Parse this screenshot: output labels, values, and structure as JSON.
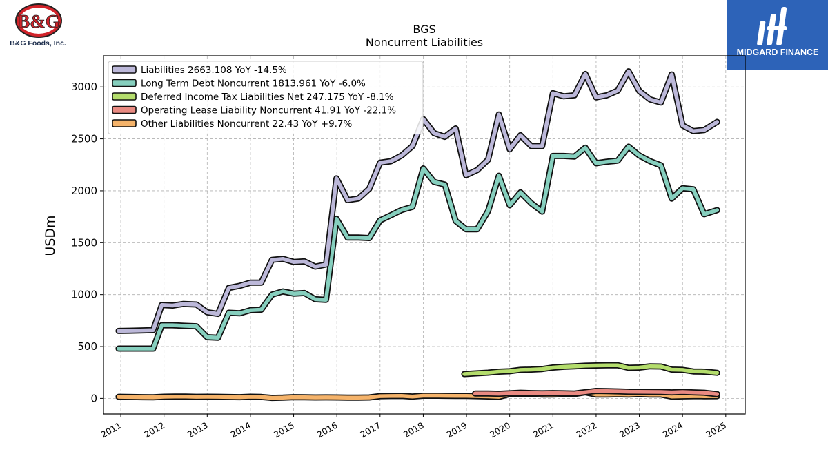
{
  "branding": {
    "company_logo_text": "B&G",
    "company_name": "B&G Foods, Inc.",
    "publisher_logo_text": "MIDGARD FINANCE",
    "publisher_bg_color": "#2d63b8"
  },
  "chart_data": {
    "type": "line",
    "title": "BGS",
    "subtitle": "Noncurrent  Liabilities",
    "ylabel": "USDm",
    "xlabel": "",
    "ylim": [
      -150,
      3300
    ],
    "xlim": [
      2010.6,
      2025.45
    ],
    "yticks": [
      0,
      500,
      1000,
      1500,
      2000,
      2500,
      3000
    ],
    "xticks": [
      "2011",
      "2012",
      "2013",
      "2014",
      "2015",
      "2016",
      "2017",
      "2018",
      "2019",
      "2020",
      "2021",
      "2022",
      "2023",
      "2024",
      "2025"
    ],
    "grid": true,
    "legend_position": "top-left",
    "series": [
      {
        "name": "Liabilities",
        "legend_label": "Liabilities  2663.108 YoY -14.5%",
        "color": "#bcb8d9",
        "points": [
          [
            2010.95,
            650
          ],
          [
            2011.2,
            652
          ],
          [
            2011.45,
            655
          ],
          [
            2011.75,
            658
          ],
          [
            2011.95,
            900
          ],
          [
            2012.2,
            895
          ],
          [
            2012.45,
            910
          ],
          [
            2012.75,
            905
          ],
          [
            2013.0,
            830
          ],
          [
            2013.25,
            815
          ],
          [
            2013.5,
            1065
          ],
          [
            2013.75,
            1085
          ],
          [
            2014.0,
            1115
          ],
          [
            2014.25,
            1115
          ],
          [
            2014.5,
            1335
          ],
          [
            2014.75,
            1345
          ],
          [
            2015.0,
            1315
          ],
          [
            2015.25,
            1320
          ],
          [
            2015.5,
            1270
          ],
          [
            2015.75,
            1290
          ],
          [
            2015.99,
            2120
          ],
          [
            2016.25,
            1910
          ],
          [
            2016.5,
            1925
          ],
          [
            2016.75,
            2020
          ],
          [
            2017.0,
            2270
          ],
          [
            2017.25,
            2285
          ],
          [
            2017.5,
            2340
          ],
          [
            2017.75,
            2430
          ],
          [
            2018.0,
            2690
          ],
          [
            2018.25,
            2555
          ],
          [
            2018.5,
            2520
          ],
          [
            2018.75,
            2600
          ],
          [
            2018.99,
            2150
          ],
          [
            2019.25,
            2200
          ],
          [
            2019.5,
            2300
          ],
          [
            2019.75,
            2735
          ],
          [
            2020.0,
            2400
          ],
          [
            2020.25,
            2535
          ],
          [
            2020.5,
            2430
          ],
          [
            2020.75,
            2430
          ],
          [
            2021.0,
            2940
          ],
          [
            2021.25,
            2910
          ],
          [
            2021.5,
            2920
          ],
          [
            2021.75,
            3125
          ],
          [
            2022.0,
            2900
          ],
          [
            2022.25,
            2920
          ],
          [
            2022.5,
            2965
          ],
          [
            2022.75,
            3150
          ],
          [
            2023.0,
            2960
          ],
          [
            2023.25,
            2880
          ],
          [
            2023.5,
            2850
          ],
          [
            2023.75,
            3120
          ],
          [
            2024.0,
            2630
          ],
          [
            2024.25,
            2575
          ],
          [
            2024.5,
            2585
          ],
          [
            2024.8,
            2663
          ]
        ]
      },
      {
        "name": "Long Term Debt Noncurrent",
        "legend_label": "Long Term Debt Noncurrent  1813.961 YoY -6.0%",
        "color": "#86cfbe",
        "points": [
          [
            2010.95,
            480
          ],
          [
            2011.2,
            480
          ],
          [
            2011.45,
            480
          ],
          [
            2011.75,
            480
          ],
          [
            2011.95,
            705
          ],
          [
            2012.2,
            705
          ],
          [
            2012.45,
            700
          ],
          [
            2012.75,
            695
          ],
          [
            2013.0,
            590
          ],
          [
            2013.25,
            585
          ],
          [
            2013.5,
            825
          ],
          [
            2013.75,
            820
          ],
          [
            2014.0,
            850
          ],
          [
            2014.25,
            855
          ],
          [
            2014.5,
            1000
          ],
          [
            2014.75,
            1030
          ],
          [
            2015.0,
            1010
          ],
          [
            2015.25,
            1015
          ],
          [
            2015.5,
            955
          ],
          [
            2015.75,
            950
          ],
          [
            2015.99,
            1730
          ],
          [
            2016.25,
            1550
          ],
          [
            2016.5,
            1550
          ],
          [
            2016.75,
            1545
          ],
          [
            2017.0,
            1715
          ],
          [
            2017.25,
            1765
          ],
          [
            2017.5,
            1815
          ],
          [
            2017.75,
            1845
          ],
          [
            2018.0,
            2215
          ],
          [
            2018.25,
            2085
          ],
          [
            2018.5,
            2060
          ],
          [
            2018.75,
            1710
          ],
          [
            2018.99,
            1630
          ],
          [
            2019.25,
            1630
          ],
          [
            2019.5,
            1805
          ],
          [
            2019.75,
            2145
          ],
          [
            2020.0,
            1860
          ],
          [
            2020.25,
            1985
          ],
          [
            2020.5,
            1880
          ],
          [
            2020.75,
            1800
          ],
          [
            2021.0,
            2335
          ],
          [
            2021.25,
            2335
          ],
          [
            2021.5,
            2330
          ],
          [
            2021.75,
            2415
          ],
          [
            2022.0,
            2265
          ],
          [
            2022.25,
            2280
          ],
          [
            2022.5,
            2290
          ],
          [
            2022.75,
            2425
          ],
          [
            2023.0,
            2340
          ],
          [
            2023.25,
            2285
          ],
          [
            2023.5,
            2245
          ],
          [
            2023.75,
            1925
          ],
          [
            2024.0,
            2025
          ],
          [
            2024.25,
            2015
          ],
          [
            2024.5,
            1775
          ],
          [
            2024.8,
            1814
          ]
        ]
      },
      {
        "name": "Deferred Income Tax Liabilities Net",
        "legend_label": "Deferred Income Tax Liabilities Net  247.175 YoY -8.1%",
        "color": "#b4dd6c",
        "points": [
          [
            2018.95,
            235
          ],
          [
            2019.25,
            242
          ],
          [
            2019.5,
            248
          ],
          [
            2019.75,
            258
          ],
          [
            2020.0,
            262
          ],
          [
            2020.25,
            275
          ],
          [
            2020.5,
            278
          ],
          [
            2020.75,
            283
          ],
          [
            2021.0,
            298
          ],
          [
            2021.25,
            305
          ],
          [
            2021.5,
            310
          ],
          [
            2021.75,
            315
          ],
          [
            2022.0,
            318
          ],
          [
            2022.25,
            320
          ],
          [
            2022.5,
            320
          ],
          [
            2022.75,
            295
          ],
          [
            2023.0,
            298
          ],
          [
            2023.25,
            310
          ],
          [
            2023.5,
            308
          ],
          [
            2023.75,
            278
          ],
          [
            2024.0,
            275
          ],
          [
            2024.25,
            260
          ],
          [
            2024.5,
            258
          ],
          [
            2024.8,
            247
          ]
        ]
      },
      {
        "name": "Operating Lease Liability Noncurrent",
        "legend_label": "Operating Lease Liability Noncurrent  41.91 YoY -22.1%",
        "color": "#e98a82",
        "points": [
          [
            2019.2,
            48
          ],
          [
            2019.5,
            48
          ],
          [
            2019.75,
            45
          ],
          [
            2020.0,
            50
          ],
          [
            2020.25,
            55
          ],
          [
            2020.5,
            52
          ],
          [
            2020.75,
            50
          ],
          [
            2021.0,
            52
          ],
          [
            2021.25,
            50
          ],
          [
            2021.5,
            48
          ],
          [
            2021.75,
            60
          ],
          [
            2022.0,
            72
          ],
          [
            2022.25,
            70
          ],
          [
            2022.5,
            68
          ],
          [
            2022.75,
            65
          ],
          [
            2023.0,
            64
          ],
          [
            2023.25,
            63
          ],
          [
            2023.5,
            62
          ],
          [
            2023.75,
            58
          ],
          [
            2024.0,
            62
          ],
          [
            2024.25,
            58
          ],
          [
            2024.5,
            55
          ],
          [
            2024.8,
            42
          ]
        ]
      },
      {
        "name": "Other Liabilities Noncurrent",
        "legend_label": "Other Liabilities Noncurrent  22.43 YoY +9.7%",
        "color": "#f5b36a",
        "points": [
          [
            2010.95,
            15
          ],
          [
            2011.25,
            13
          ],
          [
            2011.5,
            12
          ],
          [
            2011.75,
            11
          ],
          [
            2012.0,
            16
          ],
          [
            2012.25,
            18
          ],
          [
            2012.5,
            17
          ],
          [
            2012.75,
            15
          ],
          [
            2013.0,
            16
          ],
          [
            2013.25,
            15
          ],
          [
            2013.5,
            13
          ],
          [
            2013.75,
            12
          ],
          [
            2014.0,
            16
          ],
          [
            2014.25,
            14
          ],
          [
            2014.5,
            5
          ],
          [
            2014.75,
            7
          ],
          [
            2015.0,
            12
          ],
          [
            2015.25,
            11
          ],
          [
            2015.5,
            9
          ],
          [
            2015.75,
            10
          ],
          [
            2016.0,
            9
          ],
          [
            2016.25,
            8
          ],
          [
            2016.5,
            8
          ],
          [
            2016.75,
            9
          ],
          [
            2017.0,
            22
          ],
          [
            2017.25,
            23
          ],
          [
            2017.5,
            24
          ],
          [
            2017.75,
            18
          ],
          [
            2018.0,
            26
          ],
          [
            2018.25,
            26
          ],
          [
            2018.5,
            25
          ],
          [
            2018.75,
            24
          ],
          [
            2019.0,
            24
          ],
          [
            2019.25,
            22
          ],
          [
            2019.5,
            19
          ],
          [
            2019.75,
            15
          ],
          [
            2020.0,
            42
          ],
          [
            2020.25,
            46
          ],
          [
            2020.5,
            44
          ],
          [
            2020.75,
            38
          ],
          [
            2021.0,
            38
          ],
          [
            2021.25,
            42
          ],
          [
            2021.5,
            42
          ],
          [
            2021.75,
            58
          ],
          [
            2022.0,
            38
          ],
          [
            2022.25,
            38
          ],
          [
            2022.5,
            40
          ],
          [
            2022.75,
            38
          ],
          [
            2023.0,
            42
          ],
          [
            2023.25,
            38
          ],
          [
            2023.5,
            37
          ],
          [
            2023.75,
            18
          ],
          [
            2024.0,
            20
          ],
          [
            2024.25,
            22
          ],
          [
            2024.5,
            21
          ],
          [
            2024.8,
            22
          ]
        ]
      }
    ]
  }
}
